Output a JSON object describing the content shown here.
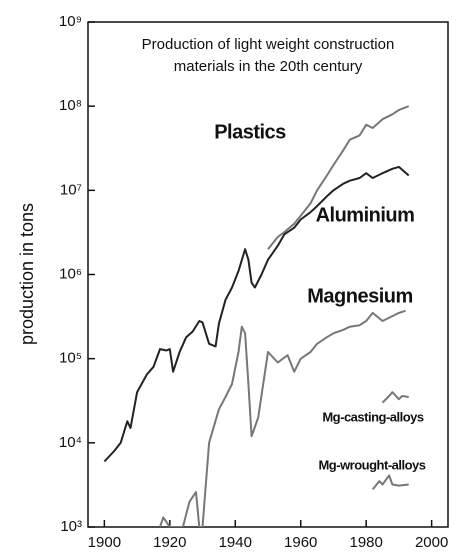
{
  "chart_data": {
    "type": "line",
    "title": [
      "Production of light weight construction",
      "materials in the 20th century"
    ],
    "ylabel": "production in tons",
    "log_y": true,
    "xlim": [
      1895,
      2005
    ],
    "xticks": [
      1900,
      1920,
      1940,
      1960,
      1980,
      2000
    ],
    "ylim": [
      1000,
      1000000000
    ],
    "yticks": [
      {
        "value": 1000,
        "label": "10³"
      },
      {
        "value": 10000,
        "label": "10⁴"
      },
      {
        "value": 100000,
        "label": "10⁵"
      },
      {
        "value": 1000000,
        "label": "10⁶"
      },
      {
        "value": 10000000,
        "label": "10⁷"
      },
      {
        "value": 100000000,
        "label": "10⁸"
      },
      {
        "value": 1000000000,
        "label": "10⁹"
      }
    ],
    "series": [
      {
        "name": "Plastics",
        "color": "#777777",
        "x": [
          1950,
          1953,
          1955,
          1958,
          1960,
          1963,
          1965,
          1968,
          1970,
          1973,
          1975,
          1978,
          1980,
          1982,
          1985,
          1988,
          1990,
          1993
        ],
        "values": [
          2000000,
          2800000,
          3200000,
          4000000,
          5000000,
          7000000,
          10000000,
          15000000,
          20000000,
          30000000,
          40000000,
          45000000,
          60000000,
          55000000,
          70000000,
          80000000,
          90000000,
          100000000
        ]
      },
      {
        "name": "Aluminium",
        "color": "#222222",
        "x": [
          1900,
          1903,
          1905,
          1907,
          1908,
          1910,
          1913,
          1915,
          1917,
          1919,
          1920,
          1921,
          1923,
          1925,
          1927,
          1929,
          1930,
          1932,
          1934,
          1935,
          1937,
          1939,
          1941,
          1943,
          1944,
          1945,
          1946,
          1948,
          1950,
          1953,
          1955,
          1958,
          1960,
          1963,
          1965,
          1968,
          1970,
          1973,
          1975,
          1978,
          1980,
          1982,
          1985,
          1988,
          1990,
          1993
        ],
        "values": [
          6000,
          8000,
          10000,
          18000,
          15000,
          40000,
          65000,
          80000,
          130000,
          125000,
          130000,
          70000,
          120000,
          180000,
          210000,
          280000,
          270000,
          150000,
          140000,
          260000,
          500000,
          700000,
          1100000,
          2000000,
          1500000,
          800000,
          700000,
          1000000,
          1500000,
          2200000,
          3000000,
          3600000,
          4500000,
          5500000,
          6500000,
          8500000,
          10000000,
          12000000,
          13000000,
          14000000,
          16000000,
          14000000,
          16000000,
          18000000,
          19000000,
          15000000
        ]
      },
      {
        "name": "Magnesium",
        "color": "#777777",
        "x": [
          1917,
          1918,
          1920,
          1924,
          1926,
          1928,
          1929,
          1930,
          1932,
          1935,
          1937,
          1939,
          1941,
          1942,
          1943,
          1944,
          1945,
          1947,
          1950,
          1953,
          1956,
          1958,
          1960,
          1963,
          1965,
          1968,
          1970,
          1973,
          1975,
          1978,
          1980,
          1982,
          1985,
          1988,
          1990,
          1992
        ],
        "values": [
          1000,
          1300,
          1000,
          1000,
          2000,
          2600,
          1000,
          1000,
          10000,
          25000,
          35000,
          50000,
          120000,
          240000,
          200000,
          50000,
          12000,
          20000,
          120000,
          90000,
          110000,
          70000,
          100000,
          120000,
          150000,
          180000,
          200000,
          220000,
          240000,
          250000,
          280000,
          350000,
          280000,
          320000,
          350000,
          370000
        ]
      },
      {
        "name": "Mg-casting-alloys",
        "color": "#777777",
        "x": [
          1985,
          1987,
          1988,
          1990,
          1991,
          1993
        ],
        "values": [
          30000,
          36000,
          40000,
          33000,
          36000,
          35000
        ]
      },
      {
        "name": "Mg-wrought-alloys",
        "color": "#777777",
        "x": [
          1982,
          1984,
          1985,
          1987,
          1988,
          1990,
          1993
        ],
        "values": [
          2800,
          3500,
          3200,
          4100,
          3200,
          3100,
          3200
        ]
      }
    ]
  }
}
